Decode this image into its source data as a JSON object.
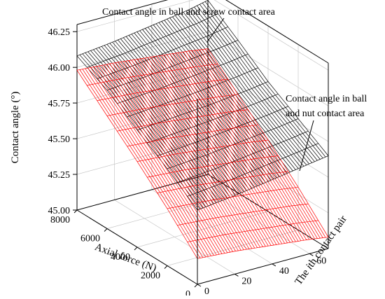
{
  "chart_data": {
    "type": "surface3d",
    "xlabel": "Axial force (N)",
    "ylabel_prefix": "The ",
    "ylabel_italic": "i",
    "ylabel_suffix": "th contact pair",
    "zlabel": "Contact angle (°)",
    "x_ticks": [
      "0",
      "2000",
      "4000",
      "6000",
      "8000"
    ],
    "y_ticks": [
      "0",
      "20",
      "40",
      "60"
    ],
    "z_ticks": [
      "45.00",
      "45.25",
      "45.50",
      "45.75",
      "46.00",
      "46.25"
    ],
    "xlim": [
      0,
      8000
    ],
    "ylim": [
      0,
      70
    ],
    "zlim": [
      45.0,
      46.3
    ],
    "grid": true,
    "series": [
      {
        "name": "Contact angle in ball and screw contact area",
        "color": "#000000",
        "axial_force": [
          0,
          2000,
          4000,
          6000,
          8000
        ],
        "contact_pair": [
          0,
          20,
          40,
          60,
          70
        ],
        "values": [
          [
            45.52,
            45.55,
            45.59,
            45.63,
            45.65
          ],
          [
            45.68,
            45.7,
            45.73,
            45.76,
            45.78
          ],
          [
            45.82,
            45.84,
            45.86,
            45.89,
            45.91
          ],
          [
            45.97,
            45.99,
            46.02,
            46.05,
            46.07
          ],
          [
            46.08,
            46.11,
            46.15,
            46.19,
            46.22
          ]
        ]
      },
      {
        "name": "Contact angle in ball and nut contact area",
        "color": "#ff0000",
        "axial_force": [
          0,
          2000,
          4000,
          6000,
          8000
        ],
        "contact_pair": [
          0,
          20,
          40,
          60,
          70
        ],
        "values": [
          [
            45.18,
            45.16,
            45.13,
            45.1,
            45.08
          ],
          [
            45.4,
            45.38,
            45.35,
            45.32,
            45.3
          ],
          [
            45.6,
            45.58,
            45.55,
            45.52,
            45.5
          ],
          [
            45.79,
            45.77,
            45.74,
            45.71,
            45.69
          ],
          [
            45.98,
            45.96,
            45.93,
            45.9,
            45.88
          ]
        ]
      }
    ],
    "annotations": [
      {
        "lines": [
          "Contact angle in ball and screw contact area"
        ]
      },
      {
        "lines": [
          "Contact angle in ball",
          "and nut contact area"
        ]
      }
    ]
  }
}
